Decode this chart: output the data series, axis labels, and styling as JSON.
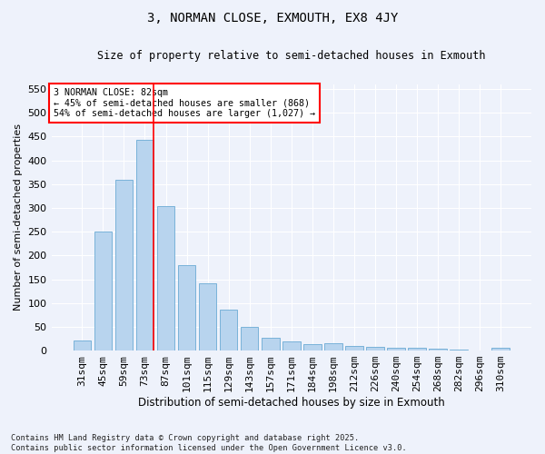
{
  "title": "3, NORMAN CLOSE, EXMOUTH, EX8 4JY",
  "subtitle": "Size of property relative to semi-detached houses in Exmouth",
  "xlabel": "Distribution of semi-detached houses by size in Exmouth",
  "ylabel": "Number of semi-detached properties",
  "categories": [
    "31sqm",
    "45sqm",
    "59sqm",
    "73sqm",
    "87sqm",
    "101sqm",
    "115sqm",
    "129sqm",
    "143sqm",
    "157sqm",
    "171sqm",
    "184sqm",
    "198sqm",
    "212sqm",
    "226sqm",
    "240sqm",
    "254sqm",
    "268sqm",
    "282sqm",
    "296sqm",
    "310sqm"
  ],
  "values": [
    22,
    250,
    360,
    443,
    303,
    180,
    142,
    86,
    49,
    26,
    20,
    14,
    15,
    9,
    7,
    6,
    6,
    4,
    2,
    1,
    5
  ],
  "bar_color": "#b8d4ee",
  "bar_edge_color": "#6aaad4",
  "background_color": "#eef2fb",
  "grid_color": "#ffffff",
  "annotation_text_line1": "3 NORMAN CLOSE: 82sqm",
  "annotation_text_line2": "← 45% of semi-detached houses are smaller (868)",
  "annotation_text_line3": "54% of semi-detached houses are larger (1,027) →",
  "ylim": [
    0,
    560
  ],
  "yticks": [
    0,
    50,
    100,
    150,
    200,
    250,
    300,
    350,
    400,
    450,
    500,
    550
  ],
  "vline_bin_index": 3,
  "footnote_line1": "Contains HM Land Registry data © Crown copyright and database right 2025.",
  "footnote_line2": "Contains public sector information licensed under the Open Government Licence v3.0."
}
